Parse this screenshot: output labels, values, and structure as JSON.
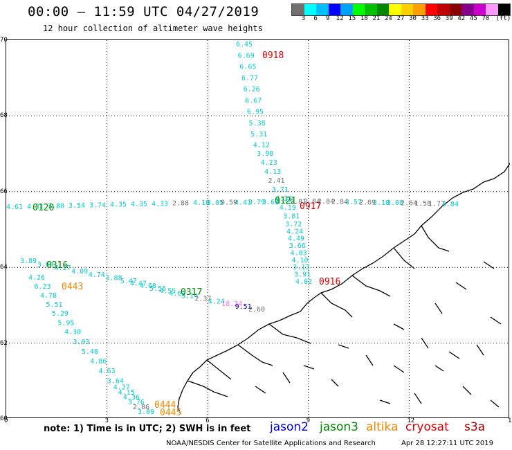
{
  "header": {
    "title": "00:00 – 11:59 UTC 04/27/2019",
    "subtitle": "12 hour collection of altimeter wave heights"
  },
  "color_scale": {
    "colors": [
      "#707070",
      "#00ffff",
      "#00bfff",
      "#0000ff",
      "#00a0ff",
      "#00ff00",
      "#00c000",
      "#008800",
      "#ffff00",
      "#ffd000",
      "#ffa000",
      "#ff0000",
      "#c00000",
      "#880000",
      "#880088",
      "#cc00cc",
      "#ff99ff",
      "#000000"
    ],
    "labels": [
      "3",
      "6",
      "9",
      "12",
      "15",
      "18",
      "21",
      "24",
      "27",
      "30",
      "33",
      "36",
      "39",
      "42",
      "45",
      "70",
      "(ft)"
    ]
  },
  "axes": {
    "lat_labels": [
      "70",
      "68",
      "66",
      "64",
      "62",
      "60"
    ],
    "lon_labels": [
      "0",
      "3",
      "6",
      "9",
      "12",
      "15"
    ]
  },
  "time_labels": [
    {
      "text": "0918",
      "color": "#dd0000"
    },
    {
      "text": "0917",
      "color": "#dd0000"
    },
    {
      "text": "0916",
      "color": "#dd0000"
    },
    {
      "text": "0121",
      "color": "#008800"
    },
    {
      "text": "0120",
      "color": "#008800"
    },
    {
      "text": "0316",
      "color": "#008800"
    },
    {
      "text": "0317",
      "color": "#008800"
    },
    {
      "text": "0443",
      "color": "#ee8800"
    },
    {
      "text": "0444",
      "color": "#ee8800"
    },
    {
      "text": "0445",
      "color": "#ee8800"
    }
  ],
  "swh_north_track": [
    "6.45",
    "6.69",
    "6.65",
    "6.77",
    "6.26",
    "6.67",
    "6.95",
    "5.38",
    "5.31",
    "4.12",
    "3.98",
    "4.23",
    "4.13",
    "2.41",
    "3.71",
    "4.33",
    "4.19",
    "3.81",
    "3.72",
    "4.24",
    "4.49",
    "3.66",
    "4.03",
    "4.10",
    "3.13",
    "3.91",
    "4.02"
  ],
  "swh_west_track": [
    "4.61",
    "4.31",
    "3.80",
    "3.54",
    "3.74",
    "4.35",
    "4.35",
    "4.33",
    "2.88",
    "4.18",
    "3.05",
    "0.59",
    "4.41",
    "3.79",
    "3.63",
    "3.15",
    "2.81",
    "2.84",
    "2.84",
    "2.84",
    "3.57",
    "2.69",
    "3.10",
    "3.08",
    "2.64",
    "1.58",
    "1.77",
    "4.84"
  ],
  "swh_diagonal_track": [
    "3.89",
    "3.64",
    "4.27",
    "4.09",
    "4.74",
    "3.88",
    "5.47",
    "4.47",
    "4.68",
    "5.56",
    "4.55",
    "4.62",
    "3.14",
    "2.37",
    "4.24",
    "18.34",
    "9.51",
    "2.60"
  ],
  "swh_south_track": [
    "4.26",
    "6.23",
    "4.78",
    "5.51",
    "5.29",
    "5.95",
    "4.30",
    "3.93",
    "5.48",
    "4.86",
    "4.63",
    "3.64",
    "4.27",
    "4.15",
    "4.36",
    "3.76",
    "2.86",
    "3.09"
  ],
  "note": "note:  1) Time is in UTC;  2) SWH is in feet",
  "legend": [
    {
      "name": "jason2",
      "color": "#0000dd"
    },
    {
      "name": "jason3",
      "color": "#008800"
    },
    {
      "name": "altika",
      "color": "#ee8800"
    },
    {
      "name": "cryosat",
      "color": "#dd0000"
    },
    {
      "name": "s3a",
      "color": "#aa0000"
    }
  ],
  "footer": {
    "credit": "NOAA/NESDIS Center for Satellite Applications and Research",
    "timestamp": "Apr 28 12:27:11 UTC 2019"
  }
}
